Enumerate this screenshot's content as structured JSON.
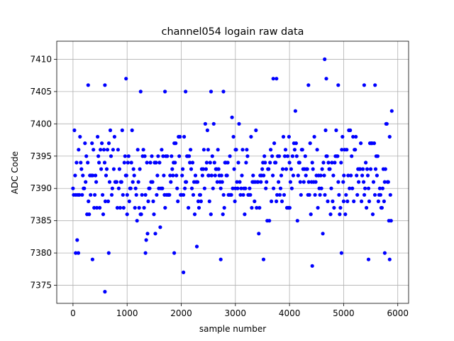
{
  "chart_data": {
    "type": "scatter",
    "title": "channel054 logain raw data",
    "xlabel": "sample number",
    "ylabel": "ADC Code",
    "xlim": [
      -300,
      6200
    ],
    "ylim": [
      7372.2,
      7412.8
    ],
    "xticks": [
      0,
      1000,
      2000,
      3000,
      4000,
      5000,
      6000
    ],
    "yticks": [
      7375,
      7380,
      7385,
      7390,
      7395,
      7400,
      7405,
      7410
    ],
    "xtick_labels": [
      "0",
      "1000",
      "2000",
      "3000",
      "4000",
      "5000",
      "6000"
    ],
    "ytick_labels": [
      "7375",
      "7380",
      "7385",
      "7390",
      "7395",
      "7400",
      "7405",
      "7410"
    ],
    "grid": true,
    "marker_color": "#0000ff",
    "n_samples": 5900,
    "core_range": [
      7386,
      7398
    ],
    "points_sample": [
      {
        "x": 280,
        "y": 7406
      },
      {
        "x": 590,
        "y": 7406
      },
      {
        "x": 980,
        "y": 7407
      },
      {
        "x": 1250,
        "y": 7405
      },
      {
        "x": 1700,
        "y": 7405
      },
      {
        "x": 2080,
        "y": 7405
      },
      {
        "x": 2550,
        "y": 7405
      },
      {
        "x": 2780,
        "y": 7405
      },
      {
        "x": 3700,
        "y": 7407
      },
      {
        "x": 3760,
        "y": 7407
      },
      {
        "x": 4350,
        "y": 7406
      },
      {
        "x": 4650,
        "y": 7410
      },
      {
        "x": 4680,
        "y": 7407
      },
      {
        "x": 4900,
        "y": 7406
      },
      {
        "x": 5380,
        "y": 7406
      },
      {
        "x": 5580,
        "y": 7406
      },
      {
        "x": 590,
        "y": 7374
      },
      {
        "x": 2040,
        "y": 7377
      },
      {
        "x": 4420,
        "y": 7378
      },
      {
        "x": 360,
        "y": 7379
      },
      {
        "x": 2730,
        "y": 7379
      },
      {
        "x": 3520,
        "y": 7379
      },
      {
        "x": 5460,
        "y": 7379
      },
      {
        "x": 5850,
        "y": 7379
      },
      {
        "x": 50,
        "y": 7380
      },
      {
        "x": 100,
        "y": 7380
      },
      {
        "x": 660,
        "y": 7380
      },
      {
        "x": 1340,
        "y": 7380
      },
      {
        "x": 1870,
        "y": 7380
      },
      {
        "x": 4960,
        "y": 7380
      },
      {
        "x": 5760,
        "y": 7380
      },
      {
        "x": 1000,
        "y": 7386
      },
      {
        "x": 2500,
        "y": 7392
      },
      {
        "x": 3000,
        "y": 7390
      },
      {
        "x": 4000,
        "y": 7394
      },
      {
        "x": 5000,
        "y": 7388
      }
    ]
  }
}
